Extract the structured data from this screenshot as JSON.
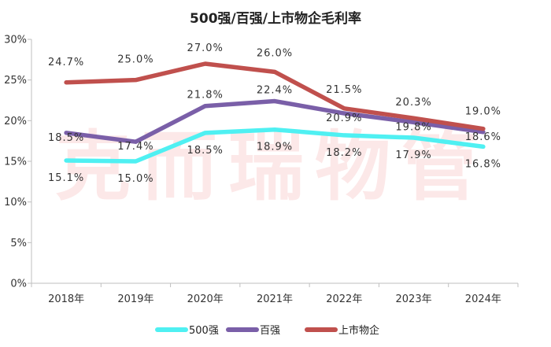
{
  "watermark": "克而瑞物管",
  "chart_data": {
    "type": "line",
    "title": "500强/百强/上市物企毛利率",
    "categories": [
      "2018年",
      "2019年",
      "2020年",
      "2021年",
      "2022年",
      "2023年",
      "2024年"
    ],
    "ylim": [
      0,
      30
    ],
    "yticks": [
      "0%",
      "5%",
      "10%",
      "15%",
      "20%",
      "25%",
      "30%"
    ],
    "grid": false,
    "legend_position": "bottom",
    "series": [
      {
        "name": "500强",
        "color": "#4ff0f2",
        "values": [
          15.1,
          15.0,
          18.5,
          18.9,
          18.2,
          17.9,
          16.8
        ],
        "labels": [
          "15.1%",
          "15.0%",
          "18.5%",
          "18.9%",
          "18.2%",
          "17.9%",
          "16.8%"
        ]
      },
      {
        "name": "百强",
        "color": "#7a5fa8",
        "values": [
          18.5,
          17.4,
          21.8,
          22.4,
          20.9,
          19.8,
          18.6
        ],
        "labels": [
          "18.5%",
          "17.4%",
          "21.8%",
          "22.4%",
          "20.9%",
          "19.8%",
          "18.6%"
        ]
      },
      {
        "name": "上市物企",
        "color": "#c0504d",
        "values": [
          24.7,
          25.0,
          27.0,
          26.0,
          21.5,
          20.3,
          19.0
        ],
        "labels": [
          "24.7%",
          "25.0%",
          "27.0%",
          "26.0%",
          "21.5%",
          "20.3%",
          "19.0%"
        ]
      }
    ]
  }
}
